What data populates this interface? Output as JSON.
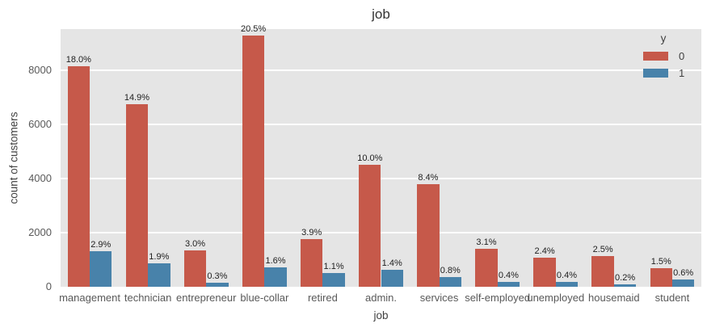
{
  "figure": {
    "title": "job",
    "xlabel": "job",
    "ylabel": "count of customers"
  },
  "legend": {
    "title": "y",
    "items": [
      {
        "label": "0",
        "color": "#c6594a"
      },
      {
        "label": "1",
        "color": "#4882aa"
      }
    ]
  },
  "chart_data": {
    "type": "bar",
    "title": "job",
    "xlabel": "job",
    "ylabel": "count of customers",
    "categories": [
      "management",
      "technician",
      "entrepreneur",
      "blue-collar",
      "retired",
      "admin.",
      "services",
      "self-employed",
      "unemployed",
      "housemaid",
      "student"
    ],
    "series": [
      {
        "name": "0",
        "color": "#c6594a",
        "values": [
          8138,
          6737,
          1356,
          9268,
          1763,
          4521,
          3798,
          1402,
          1085,
          1130,
          678
        ],
        "labels": [
          "18.0%",
          "14.9%",
          "3.0%",
          "20.5%",
          "3.9%",
          "10.0%",
          "8.4%",
          "3.1%",
          "2.4%",
          "2.5%",
          "1.5%"
        ]
      },
      {
        "name": "1",
        "color": "#4882aa",
        "values": [
          1311,
          859,
          136,
          723,
          497,
          633,
          362,
          181,
          181,
          90,
          271
        ],
        "labels": [
          "2.9%",
          "1.9%",
          "0.3%",
          "1.6%",
          "1.1%",
          "1.4%",
          "0.8%",
          "0.4%",
          "0.4%",
          "0.2%",
          "0.6%"
        ]
      }
    ],
    "yticks": [
      0,
      2000,
      4000,
      6000,
      8000
    ],
    "ylim": [
      0,
      9520
    ],
    "grid": true,
    "grid_color": "#ffffff",
    "plot_bg": "#e5e5e5",
    "legend_title": "y",
    "legend_position": "upper right"
  }
}
